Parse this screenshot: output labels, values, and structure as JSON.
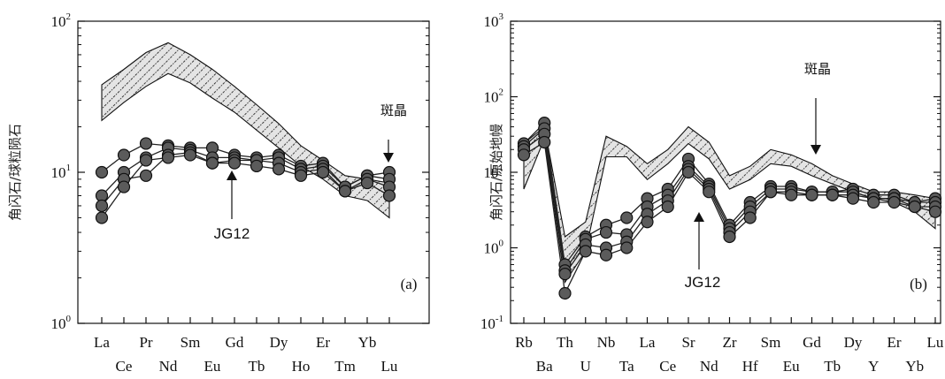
{
  "chart_data": [
    {
      "id": "a",
      "type": "line",
      "panel_label": "(a)",
      "ylabel": "角闪石/球粒陨石",
      "y_scale": "log",
      "ylim": [
        1,
        100
      ],
      "y_ticks": [
        {
          "value": 1,
          "base": "10",
          "exp": "0"
        },
        {
          "value": 10,
          "base": "10",
          "exp": "1"
        },
        {
          "value": 100,
          "base": "10",
          "exp": "2"
        }
      ],
      "categories": [
        "La",
        "Ce",
        "Pr",
        "Nd",
        "Sm",
        "Eu",
        "Gd",
        "Tb",
        "Dy",
        "Ho",
        "Er",
        "Tm",
        "Yb",
        "Lu"
      ],
      "phenocryst_band": {
        "label": "斑晶",
        "upper": [
          38,
          48,
          62,
          72,
          60,
          48,
          37,
          28,
          21,
          15,
          12,
          9.5,
          9,
          8.5
        ],
        "lower": [
          22,
          29,
          37,
          45,
          39,
          31,
          25,
          19,
          14.5,
          11,
          9,
          7,
          6.5,
          5
        ]
      },
      "series": [
        {
          "values": [
            10,
            13,
            15.5,
            15,
            14.5,
            14.5,
            13,
            12.5,
            13,
            11,
            11.5,
            8,
            9.5,
            10
          ]
        },
        {
          "values": [
            7,
            10,
            12.5,
            14.5,
            14,
            12.5,
            12.5,
            12,
            12.5,
            10.5,
            11,
            8,
            9.5,
            9
          ]
        },
        {
          "values": [
            6,
            9,
            9.5,
            13,
            13.5,
            11.5,
            12,
            12,
            11.5,
            10,
            10.5,
            7.5,
            9,
            8
          ]
        },
        {
          "values": [
            5,
            8,
            12,
            12.5,
            13,
            11.5,
            11.5,
            11,
            10.5,
            9.5,
            10,
            7.5,
            8.5,
            7
          ]
        }
      ],
      "annotations": [
        {
          "text": "斑晶",
          "points_to": "Tm"
        },
        {
          "text": "JG12",
          "points_to": "Eu"
        }
      ]
    },
    {
      "id": "b",
      "type": "line",
      "panel_label": "(b)",
      "ylabel": "角闪石/原始地幔",
      "y_scale": "log",
      "ylim": [
        0.1,
        1000
      ],
      "y_ticks": [
        {
          "value": 0.1,
          "base": "10",
          "exp": "-1"
        },
        {
          "value": 1,
          "base": "10",
          "exp": "0"
        },
        {
          "value": 10,
          "base": "10",
          "exp": "1"
        },
        {
          "value": 100,
          "base": "10",
          "exp": "2"
        },
        {
          "value": 1000,
          "base": "10",
          "exp": "3"
        }
      ],
      "categories": [
        "Rb",
        "Ba",
        "Th",
        "U",
        "Nb",
        "Ta",
        "La",
        "Ce",
        "Sr",
        "Nd",
        "Zr",
        "Hf",
        "Sm",
        "Eu",
        "Gd",
        "Tb",
        "Dy",
        "Y",
        "Er",
        "Yb",
        "Lu"
      ],
      "phenocryst_band": {
        "label": "斑晶",
        "upper": [
          24,
          40,
          1.4,
          2.2,
          30,
          22,
          13,
          20,
          40,
          25,
          9,
          12,
          20,
          17,
          13,
          9,
          7,
          5.5,
          5.5,
          5,
          4.5
        ],
        "lower": [
          6,
          28,
          0.35,
          0.9,
          16,
          16,
          8,
          13,
          24,
          15,
          6,
          8,
          13,
          12,
          9,
          7,
          5.5,
          4.5,
          4,
          3,
          1.8
        ]
      },
      "series": [
        {
          "values": [
            24,
            45,
            0.6,
            1.4,
            2,
            2.5,
            4.5,
            6,
            15,
            7,
            2,
            4,
            6.5,
            6.5,
            5.5,
            5.5,
            6,
            5,
            5,
            4,
            4.5
          ]
        },
        {
          "values": [
            22,
            38,
            0.5,
            1.3,
            1.6,
            1.5,
            3.5,
            5,
            12,
            6.5,
            1.8,
            3.5,
            6,
            6,
            5.5,
            5.5,
            5.5,
            4.5,
            4.5,
            4,
            4
          ]
        },
        {
          "values": [
            20,
            32,
            0.45,
            1.1,
            1,
            1.2,
            2.8,
            4.2,
            11,
            6,
            1.6,
            3,
            5.5,
            5.5,
            5,
            5,
            5,
            4.5,
            4.5,
            3.5,
            3.5
          ]
        },
        {
          "values": [
            17,
            25,
            0.25,
            0.9,
            0.8,
            1,
            2.2,
            3.5,
            10,
            5.5,
            1.4,
            2.5,
            5.5,
            5,
            5,
            5,
            4.5,
            4,
            4,
            3.5,
            3
          ]
        }
      ],
      "annotations": [
        {
          "text": "斑晶",
          "points_to": "Gd"
        },
        {
          "text": "JG12",
          "points_to": "Ce"
        }
      ]
    }
  ]
}
